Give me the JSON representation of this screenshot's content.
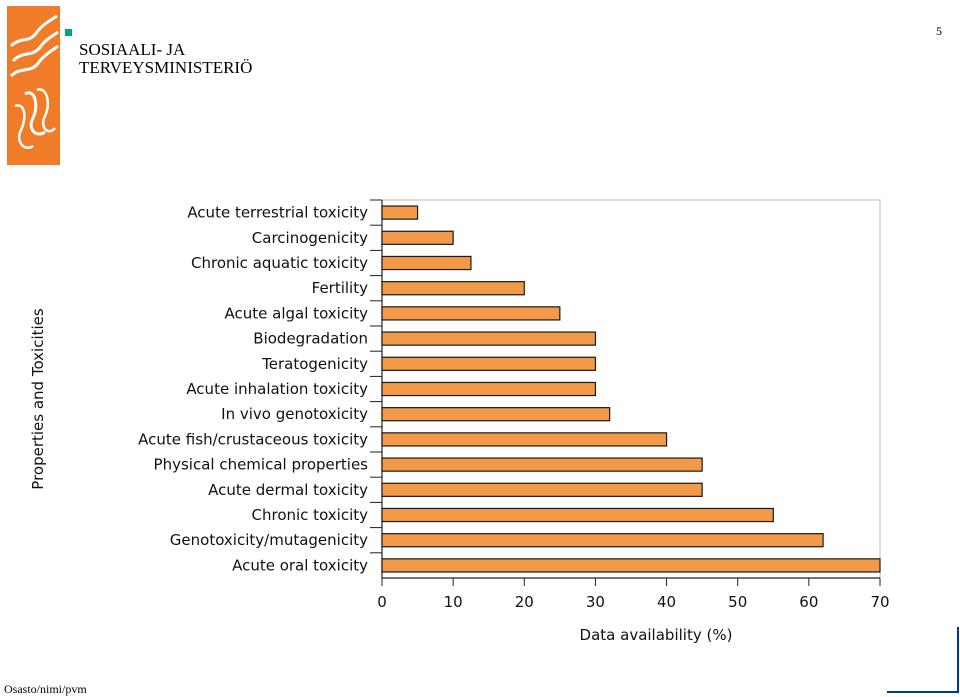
{
  "header": {
    "org_name": "SOSIAALI- JA\nTERVEYSMINISTERIÖ",
    "page_number": "5",
    "accent_color": "#00a67e",
    "logo_color": "#f07c2a"
  },
  "footer": {
    "text": "Osasto/nimi/pvm"
  },
  "chart_data": {
    "type": "bar",
    "orientation": "horizontal",
    "categories": [
      "Acute terrestrial toxicity",
      "Carcinogenicity",
      "Chronic aquatic toxicity",
      "Fertility",
      "Acute algal toxicity",
      "Biodegradation",
      "Teratogenicity",
      "Acute inhalation toxicity",
      "In vivo genotoxicity",
      "Acute fish/crustaceous toxicity",
      "Physical chemical properties",
      "Acute dermal toxicity",
      "Chronic toxicity",
      "Genotoxicity/mutagenicity",
      "Acute oral toxicity"
    ],
    "values": [
      5,
      10,
      12.5,
      20,
      25,
      30,
      30,
      30,
      32,
      40,
      45,
      45,
      55,
      62,
      70
    ],
    "xlabel": "Data availability (%)",
    "ylabel": "Properties and Toxicities",
    "xlim": [
      0,
      70
    ],
    "xticks": [
      "0",
      "10",
      "20",
      "30",
      "40",
      "50",
      "60",
      "70"
    ],
    "bar_color": "#f29a48",
    "bar_edge_color": "#1a1a1a",
    "grid": false,
    "legend": "none"
  }
}
